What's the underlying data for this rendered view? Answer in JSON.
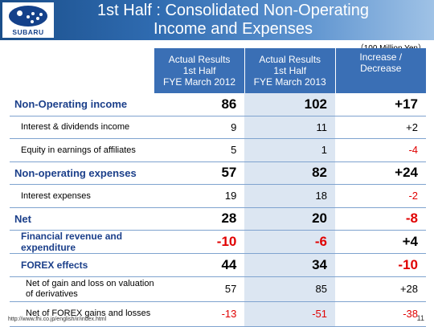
{
  "brand": {
    "logo_text": "SUBARU"
  },
  "title_line1": "1st Half : Consolidated Non-Operating",
  "title_line2": "Income and Expenses",
  "unit": "（100 Million Yen）",
  "columns": [
    {
      "l1": "Actual Results",
      "l2": "1st Half",
      "l3": "FYE March 2012"
    },
    {
      "l1": "Actual Results",
      "l2": "1st Half",
      "l3": "FYE March 2013"
    },
    {
      "l1": "Increase /",
      "l2": "Decrease",
      "l3": ""
    }
  ],
  "rows": [
    {
      "label": "Non-Operating income",
      "v1": "86",
      "v2": "102",
      "v3": "+17"
    },
    {
      "label": "Interest & dividends income",
      "v1": "9",
      "v2": "11",
      "v3": "+2"
    },
    {
      "label": "Equity in earnings of affiliates",
      "v1": "5",
      "v2": "1",
      "v3": "-4"
    },
    {
      "label": "Non-operating expenses",
      "v1": "57",
      "v2": "82",
      "v3": "+24"
    },
    {
      "label": "Interest expenses",
      "v1": "19",
      "v2": "18",
      "v3": "-2"
    },
    {
      "label": "Net",
      "v1": "28",
      "v2": "20",
      "v3": "-8"
    },
    {
      "label": "Financial revenue and expenditure",
      "v1": "-10",
      "v2": "-6",
      "v3": "+4"
    },
    {
      "label": "FOREX effects",
      "v1": "44",
      "v2": "34",
      "v3": "-10"
    },
    {
      "label": "Net of gain and loss on valuation of derivatives",
      "v1": "57",
      "v2": "85",
      "v3": "+28"
    },
    {
      "label": "Net of FOREX gains and losses",
      "v1": "-13",
      "v2": "-51",
      "v3": "-38"
    }
  ],
  "footer_url": "http://www.fhi.co.jp/english/ir/index.html",
  "page_number": "11",
  "colors": {
    "header": "#2f6bb0",
    "negative": "#e00000",
    "label": "#1b3f8a"
  }
}
